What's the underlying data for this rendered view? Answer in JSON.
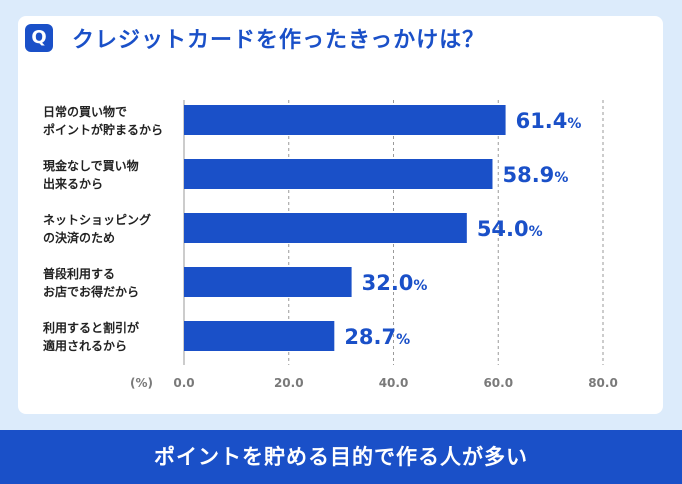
{
  "badge": "Q",
  "question": "クレジットカードを作ったきっかけは？",
  "footer": "ポイントを貯める目的で作る人が多い",
  "colors": {
    "accent": "#1a50c8",
    "background": "#dcebfb",
    "card": "#ffffff",
    "grid": "#9a9a9a",
    "label": "#222222",
    "tick": "#7a7a7a"
  },
  "chart_data": {
    "type": "bar",
    "orientation": "horizontal",
    "unit_label": "(%)",
    "categories": [
      [
        "日常の買い物で",
        "ポイントが貯まるから"
      ],
      [
        "現金なしで買い物",
        "出来るから"
      ],
      [
        "ネットショッピング",
        "の決済のため"
      ],
      [
        "普段利用する",
        "お店でお得だから"
      ],
      [
        "利用すると割引が",
        "適用されるから"
      ]
    ],
    "values": [
      61.4,
      58.9,
      54.0,
      32.0,
      28.7
    ],
    "value_labels": [
      "61.4",
      "58.9",
      "54.0",
      "32.0",
      "28.7"
    ],
    "value_suffix": "%",
    "xlim": [
      0,
      80
    ],
    "xticks": [
      "0.0",
      "20.0",
      "40.0",
      "60.0",
      "80.0"
    ],
    "grid": true
  }
}
